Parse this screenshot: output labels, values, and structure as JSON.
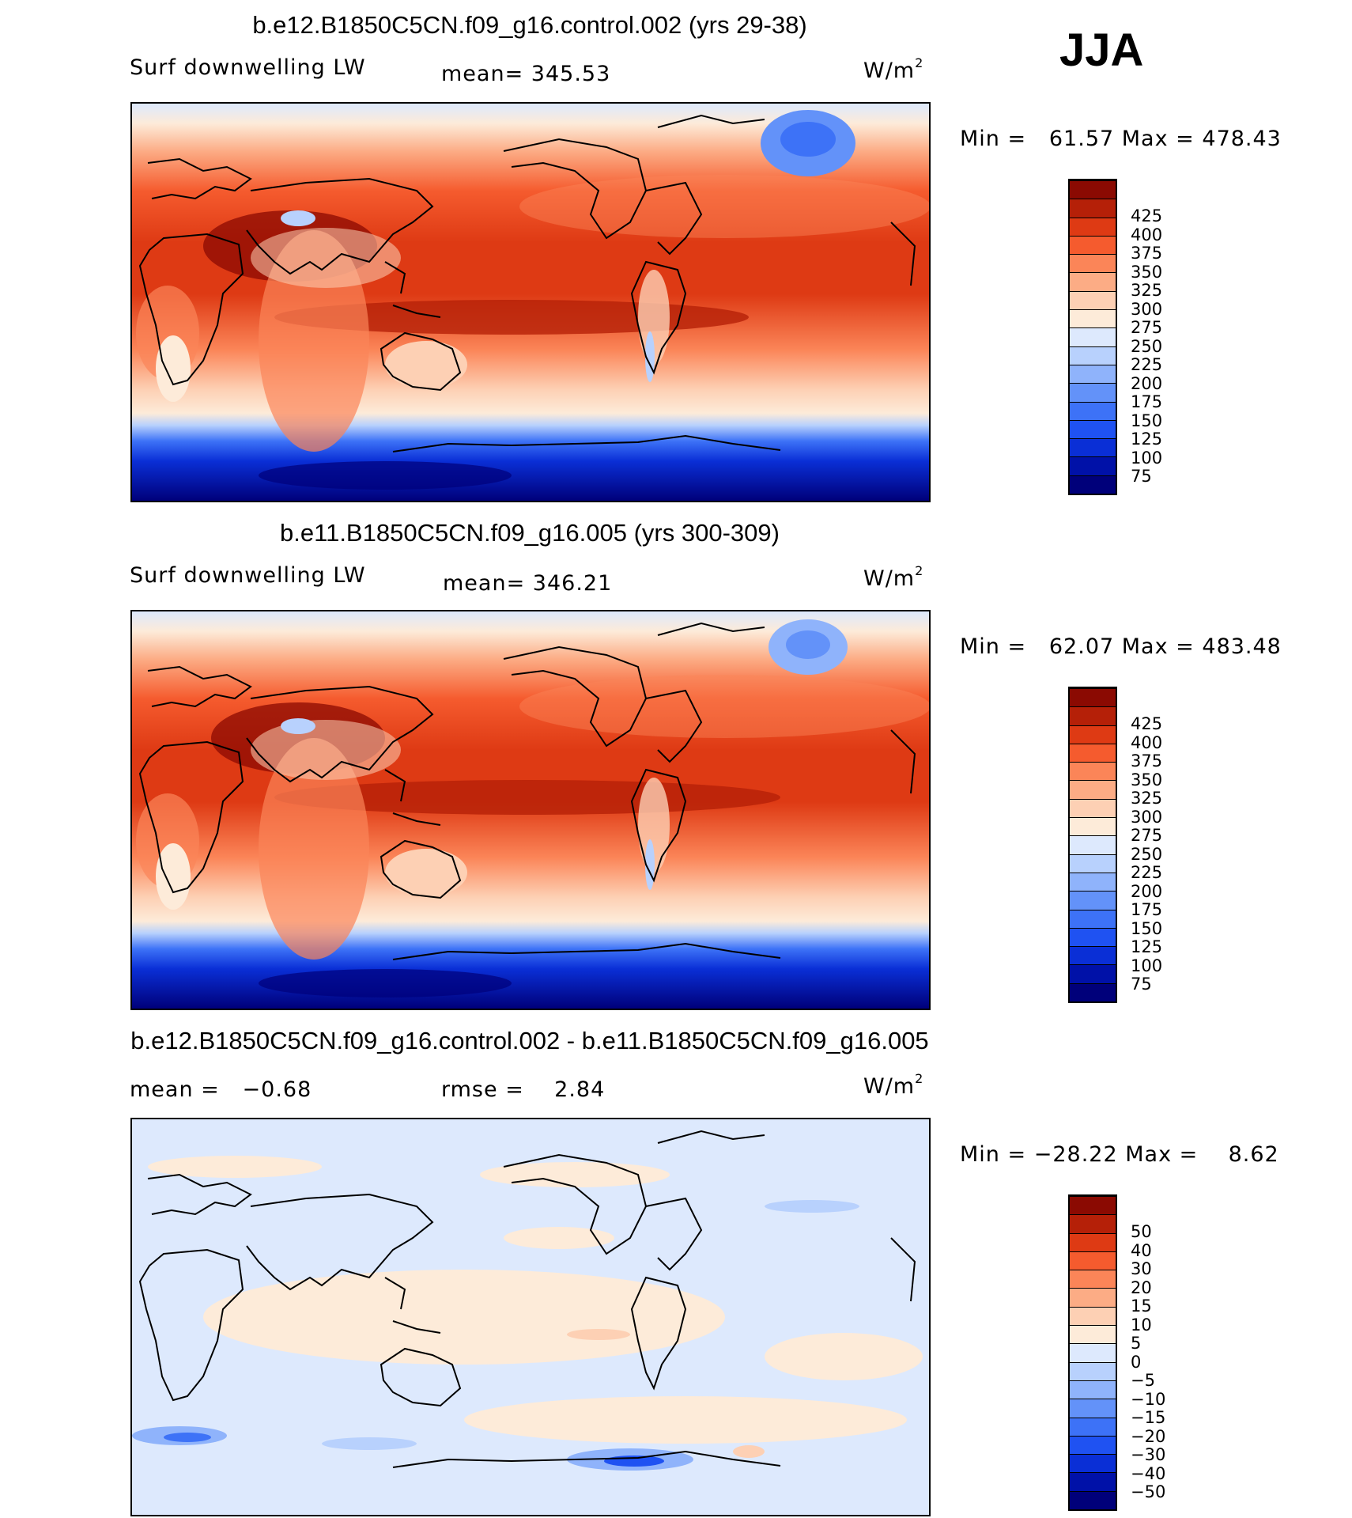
{
  "season": "JJA",
  "panels": [
    {
      "title": "b.e12.B1850C5CN.f09_g16.control.002 (yrs 29-38)",
      "variable": "Surf downwelling LW",
      "stat1_label": "mean=",
      "stat1_value": "345.53",
      "stat2_label": "",
      "stat2_value": "",
      "units_base": "W/m",
      "units_exp": "2",
      "min_label": "Min =",
      "min_value": "61.57",
      "max_label": "Max =",
      "max_value": "478.43",
      "colorbar": {
        "colors": [
          "#00007a",
          "#0011a8",
          "#0a2fd6",
          "#1f52f2",
          "#3d72f7",
          "#6392f9",
          "#8fb3fb",
          "#b8d1fd",
          "#dde9fd",
          "#fdebd9",
          "#fdd0b4",
          "#fcac85",
          "#fb8558",
          "#f55b2e",
          "#de3a14",
          "#b52008",
          "#8b0a02"
        ],
        "labels": [
          "75",
          "100",
          "125",
          "150",
          "175",
          "200",
          "225",
          "250",
          "275",
          "300",
          "325",
          "350",
          "375",
          "400",
          "425"
        ]
      }
    },
    {
      "title": "b.e11.B1850C5CN.f09_g16.005 (yrs 300-309)",
      "variable": "Surf downwelling LW",
      "stat1_label": "mean=",
      "stat1_value": "346.21",
      "stat2_label": "",
      "stat2_value": "",
      "units_base": "W/m",
      "units_exp": "2",
      "min_label": "Min =",
      "min_value": "62.07",
      "max_label": "Max =",
      "max_value": "483.48",
      "colorbar": {
        "colors": [
          "#00007a",
          "#0011a8",
          "#0a2fd6",
          "#1f52f2",
          "#3d72f7",
          "#6392f9",
          "#8fb3fb",
          "#b8d1fd",
          "#dde9fd",
          "#fdebd9",
          "#fdd0b4",
          "#fcac85",
          "#fb8558",
          "#f55b2e",
          "#de3a14",
          "#b52008",
          "#8b0a02"
        ],
        "labels": [
          "75",
          "100",
          "125",
          "150",
          "175",
          "200",
          "225",
          "250",
          "275",
          "300",
          "325",
          "350",
          "375",
          "400",
          "425"
        ]
      }
    },
    {
      "title": "b.e12.B1850C5CN.f09_g16.control.002 - b.e11.B1850C5CN.f09_g16.005",
      "variable": "",
      "stat1_label": "mean =",
      "stat1_value": "−0.68",
      "stat2_label": "rmse =",
      "stat2_value": "2.84",
      "units_base": "W/m",
      "units_exp": "2",
      "min_label": "Min =",
      "min_value": "−28.22",
      "max_label": "Max =",
      "max_value": "8.62",
      "colorbar": {
        "colors": [
          "#00007a",
          "#0011a8",
          "#0a2fd6",
          "#1f52f2",
          "#3d72f7",
          "#6392f9",
          "#8fb3fb",
          "#b8d1fd",
          "#dde9fd",
          "#fdebd9",
          "#fdd0b4",
          "#fcac85",
          "#fb8558",
          "#f55b2e",
          "#de3a14",
          "#b52008",
          "#8b0a02"
        ],
        "labels": [
          "−50",
          "−40",
          "−30",
          "−20",
          "−15",
          "−10",
          "−5",
          "0",
          "5",
          "10",
          "15",
          "20",
          "30",
          "40",
          "50"
        ]
      }
    }
  ]
}
